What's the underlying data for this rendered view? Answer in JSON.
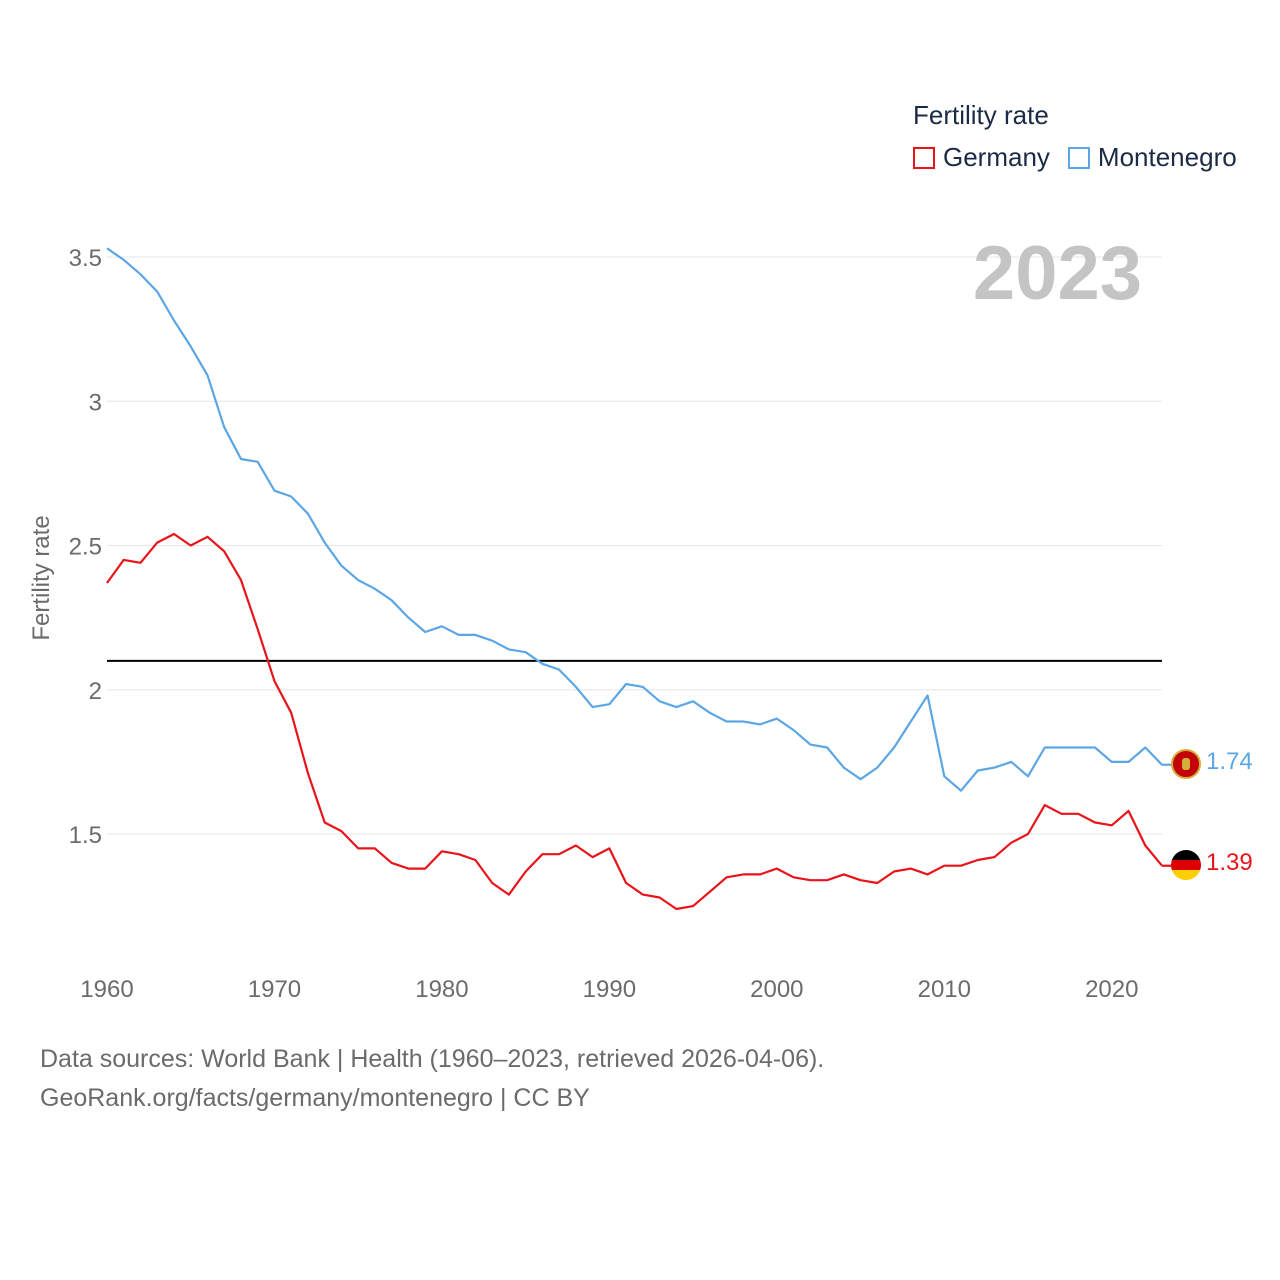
{
  "legend": {
    "title": "Fertility rate",
    "items": [
      {
        "name": "Germany",
        "color": "#e8141a"
      },
      {
        "name": "Montenegro",
        "color": "#5ca6e6"
      }
    ]
  },
  "current_year": "2023",
  "end_labels": {
    "germany": "1.39",
    "montenegro": "1.74"
  },
  "footer": {
    "line1": "Data sources: World Bank | Health (1960–2023, retrieved 2026-04-06).",
    "line2": "GeoRank.org/facts/germany/montenegro | CC BY"
  },
  "colors": {
    "germany": "#e8141a",
    "montenegro": "#5ca6e6",
    "reference": "#000000",
    "grid": "#e6e6e6",
    "axis_text": "#6b6b6b"
  },
  "chart_data": {
    "type": "line",
    "title": "",
    "xlabel": "",
    "ylabel": "Fertility rate",
    "xlim": [
      1960,
      2023
    ],
    "ylim": [
      1.05,
      3.55
    ],
    "x_ticks": [
      1960,
      1970,
      1980,
      1990,
      2000,
      2010,
      2020
    ],
    "y_ticks": [
      1.5,
      2,
      2.5,
      3,
      3.5
    ],
    "y_tick_labels": [
      "1.5",
      "2",
      "2.5",
      "3",
      "3.5"
    ],
    "reference_line": 2.1,
    "x": [
      1960,
      1961,
      1962,
      1963,
      1964,
      1965,
      1966,
      1967,
      1968,
      1969,
      1970,
      1971,
      1972,
      1973,
      1974,
      1975,
      1976,
      1977,
      1978,
      1979,
      1980,
      1981,
      1982,
      1983,
      1984,
      1985,
      1986,
      1987,
      1988,
      1989,
      1990,
      1991,
      1992,
      1993,
      1994,
      1995,
      1996,
      1997,
      1998,
      1999,
      2000,
      2001,
      2002,
      2003,
      2004,
      2005,
      2006,
      2007,
      2008,
      2009,
      2010,
      2011,
      2012,
      2013,
      2014,
      2015,
      2016,
      2017,
      2018,
      2019,
      2020,
      2021,
      2022,
      2023
    ],
    "series": [
      {
        "name": "Germany",
        "values": [
          2.37,
          2.45,
          2.44,
          2.51,
          2.54,
          2.5,
          2.53,
          2.48,
          2.38,
          2.21,
          2.03,
          1.92,
          1.71,
          1.54,
          1.51,
          1.45,
          1.45,
          1.4,
          1.38,
          1.38,
          1.44,
          1.43,
          1.41,
          1.33,
          1.29,
          1.37,
          1.43,
          1.43,
          1.46,
          1.42,
          1.45,
          1.33,
          1.29,
          1.28,
          1.24,
          1.25,
          1.3,
          1.35,
          1.36,
          1.36,
          1.38,
          1.35,
          1.34,
          1.34,
          1.36,
          1.34,
          1.33,
          1.37,
          1.38,
          1.36,
          1.39,
          1.39,
          1.41,
          1.42,
          1.47,
          1.5,
          1.6,
          1.57,
          1.57,
          1.54,
          1.53,
          1.58,
          1.46,
          1.39
        ]
      },
      {
        "name": "Montenegro",
        "values": [
          3.53,
          3.49,
          3.44,
          3.38,
          3.28,
          3.19,
          3.09,
          2.91,
          2.8,
          2.79,
          2.69,
          2.67,
          2.61,
          2.51,
          2.43,
          2.38,
          2.35,
          2.31,
          2.25,
          2.2,
          2.22,
          2.19,
          2.19,
          2.17,
          2.14,
          2.13,
          2.09,
          2.07,
          2.01,
          1.94,
          1.95,
          2.02,
          2.01,
          1.96,
          1.94,
          1.96,
          1.92,
          1.89,
          1.89,
          1.88,
          1.9,
          1.86,
          1.81,
          1.8,
          1.73,
          1.69,
          1.73,
          1.8,
          1.89,
          1.98,
          1.7,
          1.65,
          1.72,
          1.73,
          1.75,
          1.7,
          1.8,
          1.8,
          1.8,
          1.8,
          1.75,
          1.75,
          1.8,
          1.74
        ]
      }
    ]
  }
}
